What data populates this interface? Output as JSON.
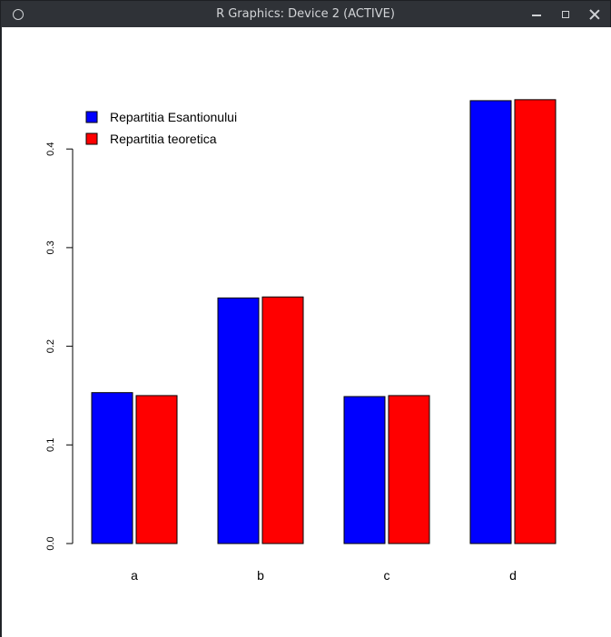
{
  "window": {
    "title": "R Graphics: Device 2 (ACTIVE)",
    "icons": {
      "app": "circle-icon",
      "minimize": "minimize-icon",
      "maximize": "maximize-icon",
      "close": "close-icon"
    }
  },
  "chart_data": {
    "type": "bar",
    "categories": [
      "a",
      "b",
      "c",
      "d"
    ],
    "series": [
      {
        "name": "Repartitia Esantionului",
        "color": "#0000ff",
        "values": [
          0.153,
          0.249,
          0.149,
          0.449
        ]
      },
      {
        "name": "Repartitia teoretica",
        "color": "#ff0000",
        "values": [
          0.15,
          0.25,
          0.15,
          0.45
        ]
      }
    ],
    "title": "",
    "xlabel": "",
    "ylabel": "",
    "ylim": [
      0,
      0.45
    ],
    "yticks": [
      "0.0",
      "0.1",
      "0.2",
      "0.3",
      "0.4"
    ],
    "grid": false,
    "legend": "top-left"
  }
}
